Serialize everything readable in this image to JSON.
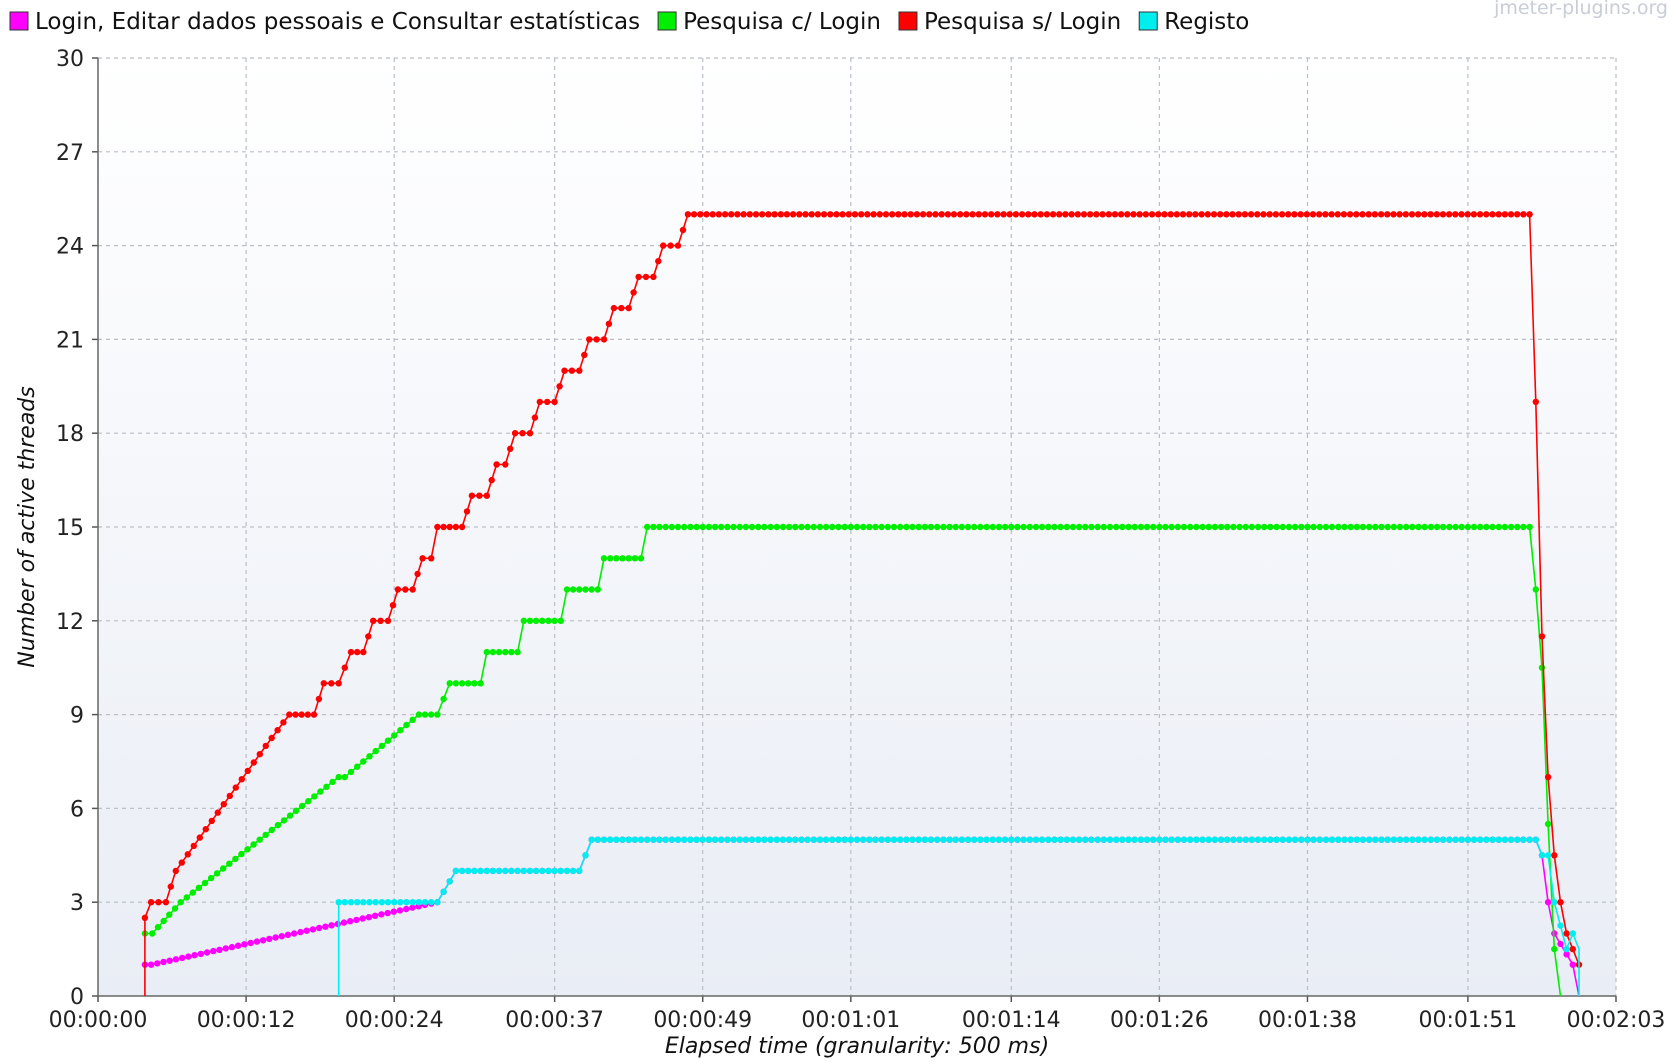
{
  "watermark": "jmeter-plugins.org",
  "chart_data": {
    "type": "line",
    "title": "",
    "xlabel": "Elapsed time (granularity: 500 ms)",
    "ylabel": "Number of active threads",
    "xlim": [
      0,
      123
    ],
    "ylim": [
      0,
      30
    ],
    "y_ticks": [
      0,
      3,
      6,
      9,
      12,
      15,
      18,
      21,
      24,
      27,
      30
    ],
    "x_ticks": [
      {
        "t": 0,
        "label": "00:00:00"
      },
      {
        "t": 12,
        "label": "00:00:12"
      },
      {
        "t": 24,
        "label": "00:00:24"
      },
      {
        "t": 37,
        "label": "00:00:37"
      },
      {
        "t": 49,
        "label": "00:00:49"
      },
      {
        "t": 61,
        "label": "00:01:01"
      },
      {
        "t": 74,
        "label": "00:01:14"
      },
      {
        "t": 86,
        "label": "00:01:26"
      },
      {
        "t": 98,
        "label": "00:01:38"
      },
      {
        "t": 111,
        "label": "00:01:51"
      },
      {
        "t": 123,
        "label": "00:02:03"
      }
    ],
    "grid": true,
    "legend_position": "top",
    "series": [
      {
        "name": "Login, Editar dados pessoais e Consultar estatísticas",
        "color": "#ff00ff",
        "points": [
          [
            3.8,
            1
          ],
          [
            4.3,
            1
          ],
          [
            27.5,
            3
          ],
          [
            29,
            4
          ],
          [
            39,
            4
          ],
          [
            40,
            5
          ],
          [
            116.5,
            5
          ],
          [
            117,
            4.5
          ],
          [
            117.5,
            3
          ],
          [
            118,
            2
          ],
          [
            119.5,
            1
          ],
          [
            120,
            0
          ]
        ]
      },
      {
        "name": "Pesquisa c/ Login",
        "color": "#00ee00",
        "points": [
          [
            3.8,
            2
          ],
          [
            4.4,
            2
          ],
          [
            6.7,
            3
          ],
          [
            19.5,
            7
          ],
          [
            20,
            7
          ],
          [
            26,
            9
          ],
          [
            27.5,
            9
          ],
          [
            28.5,
            10
          ],
          [
            31,
            10
          ],
          [
            31.5,
            11
          ],
          [
            34,
            11
          ],
          [
            34.5,
            12
          ],
          [
            37.5,
            12
          ],
          [
            38,
            13
          ],
          [
            40.5,
            13
          ],
          [
            41,
            14
          ],
          [
            44,
            14
          ],
          [
            44.5,
            15
          ],
          [
            116,
            15
          ],
          [
            116.5,
            13
          ],
          [
            117,
            10.5
          ],
          [
            117.5,
            5.5
          ],
          [
            118,
            1.5
          ],
          [
            118.5,
            0
          ]
        ]
      },
      {
        "name": "Pesquisa s/ Login",
        "color": "#ff0000",
        "points": [
          [
            3.8,
            0
          ],
          [
            3.8,
            2.5
          ],
          [
            4.3,
            3
          ],
          [
            5.5,
            3
          ],
          [
            5.9,
            3.5
          ],
          [
            6.3,
            4
          ],
          [
            13.6,
            8
          ],
          [
            15.5,
            9
          ],
          [
            17.5,
            9
          ],
          [
            17.9,
            9.5
          ],
          [
            18.3,
            10
          ],
          [
            19.5,
            10
          ],
          [
            20.5,
            11
          ],
          [
            21.5,
            11
          ],
          [
            21.9,
            11.5
          ],
          [
            22.3,
            12
          ],
          [
            23.5,
            12
          ],
          [
            23.9,
            12.5
          ],
          [
            24.3,
            13
          ],
          [
            25.5,
            13
          ],
          [
            25.9,
            13.5
          ],
          [
            26.3,
            14
          ],
          [
            27,
            14
          ],
          [
            27.5,
            15
          ],
          [
            29.5,
            15
          ],
          [
            29.9,
            15.5
          ],
          [
            30.3,
            16
          ],
          [
            31.5,
            16
          ],
          [
            31.9,
            16.5
          ],
          [
            32.3,
            17
          ],
          [
            33,
            17
          ],
          [
            33.4,
            17.5
          ],
          [
            33.8,
            18
          ],
          [
            35,
            18
          ],
          [
            35.4,
            18.5
          ],
          [
            35.8,
            19
          ],
          [
            37,
            19
          ],
          [
            37.4,
            19.5
          ],
          [
            37.8,
            20
          ],
          [
            39,
            20
          ],
          [
            39.4,
            20.5
          ],
          [
            39.8,
            21
          ],
          [
            41,
            21
          ],
          [
            41.4,
            21.5
          ],
          [
            41.8,
            22
          ],
          [
            43,
            22
          ],
          [
            43.4,
            22.5
          ],
          [
            43.8,
            23
          ],
          [
            45,
            23
          ],
          [
            45.4,
            23.5
          ],
          [
            45.8,
            24
          ],
          [
            47,
            24
          ],
          [
            47.4,
            24.5
          ],
          [
            47.8,
            25
          ],
          [
            116,
            25
          ],
          [
            116.5,
            19
          ],
          [
            117,
            11.5
          ],
          [
            117.5,
            7
          ],
          [
            118,
            4.5
          ],
          [
            118.5,
            3
          ],
          [
            119,
            2
          ],
          [
            119.5,
            1.5
          ],
          [
            120,
            1
          ]
        ]
      },
      {
        "name": "Registo",
        "color": "#00eeee",
        "points": [
          [
            19.5,
            0
          ],
          [
            19.5,
            3
          ],
          [
            27.5,
            3
          ],
          [
            29,
            4
          ],
          [
            39,
            4
          ],
          [
            40,
            5
          ],
          [
            116.5,
            5
          ],
          [
            117,
            4.5
          ],
          [
            117.5,
            4.5
          ],
          [
            118,
            3
          ],
          [
            119,
            1.5
          ],
          [
            119.5,
            2
          ],
          [
            120,
            1.5
          ],
          [
            120,
            0
          ]
        ]
      }
    ]
  }
}
